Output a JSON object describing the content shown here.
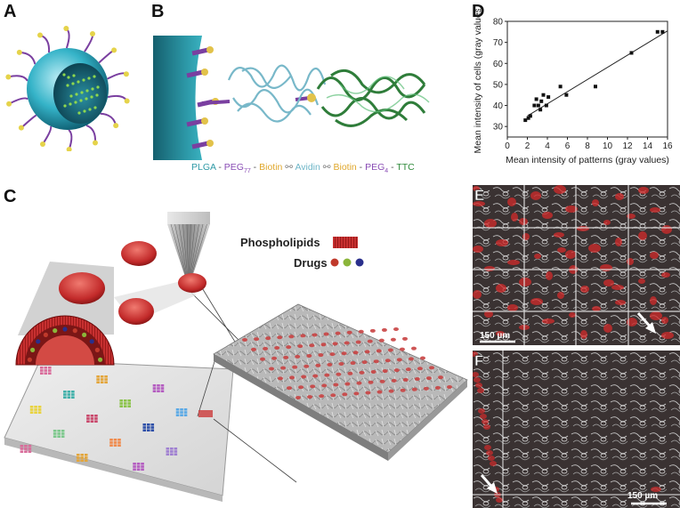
{
  "panels": {
    "a": {
      "letter": "A"
    },
    "b": {
      "letter": "B",
      "legend": [
        {
          "text": "PLGA",
          "color": "#2f9aa6"
        },
        {
          "text": " - ",
          "color": "#555555"
        },
        {
          "text": "PEG",
          "color": "#8a4db5",
          "sub": "77"
        },
        {
          "text": " - ",
          "color": "#555555"
        },
        {
          "text": "Biotin",
          "color": "#e0a82e"
        },
        {
          "text": " ⚯ ",
          "color": "#888888"
        },
        {
          "text": "Avidin",
          "color": "#6fb6c8"
        },
        {
          "text": " ⚯ ",
          "color": "#888888"
        },
        {
          "text": "Biotin",
          "color": "#e0a82e"
        },
        {
          "text": " - ",
          "color": "#555555"
        },
        {
          "text": "PEG",
          "color": "#8a4db5",
          "sub": "4"
        },
        {
          "text": " - ",
          "color": "#555555"
        },
        {
          "text": "TTC",
          "color": "#2e8a3a"
        }
      ]
    },
    "c": {
      "letter": "C",
      "phospholipids_label": "Phospholipids",
      "drugs_label": "Drugs"
    },
    "d": {
      "letter": "D"
    },
    "e": {
      "letter": "E",
      "scale_label": "150 µm"
    },
    "f": {
      "letter": "F",
      "scale_label": "150 µm"
    }
  },
  "chart_data": {
    "type": "scatter",
    "xlabel": "Mean intensity of patterns (gray values)",
    "ylabel": "Mean intensity of cells (gray values)",
    "xlim": [
      0,
      16
    ],
    "ylim": [
      25,
      80
    ],
    "xticks": [
      0,
      2,
      4,
      6,
      8,
      10,
      12,
      14,
      16
    ],
    "yticks": [
      30,
      40,
      50,
      60,
      70,
      80
    ],
    "grid": false,
    "x": [
      1.8,
      2.1,
      2.3,
      2.7,
      2.9,
      3.1,
      3.3,
      3.4,
      3.6,
      3.9,
      4.1,
      5.3,
      5.9,
      8.8,
      12.4,
      15.0,
      15.5
    ],
    "y": [
      33,
      34,
      35,
      40,
      43,
      40,
      38,
      42,
      45,
      40,
      44,
      49,
      45,
      49,
      65,
      75,
      75
    ],
    "trendline": {
      "x": [
        2,
        16
      ],
      "y": [
        35,
        75.5
      ]
    }
  }
}
